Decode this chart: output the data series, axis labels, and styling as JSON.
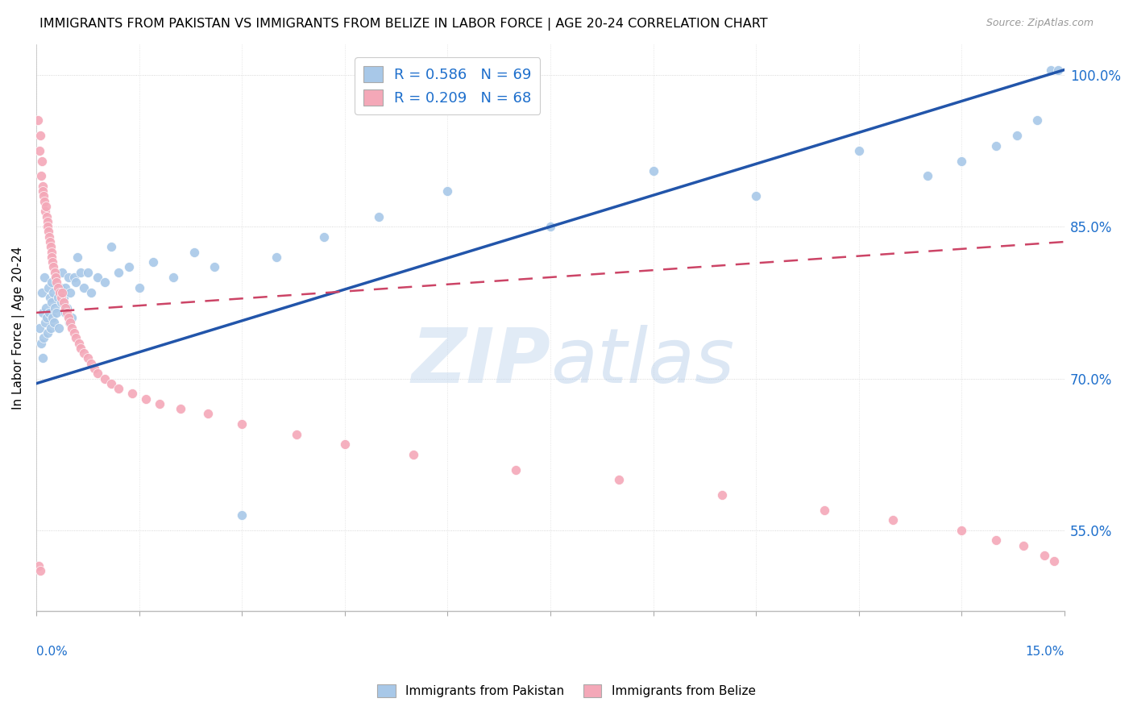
{
  "title": "IMMIGRANTS FROM PAKISTAN VS IMMIGRANTS FROM BELIZE IN LABOR FORCE | AGE 20-24 CORRELATION CHART",
  "source": "Source: ZipAtlas.com",
  "ylabel": "In Labor Force | Age 20-24",
  "right_yticks": [
    55.0,
    70.0,
    85.0,
    100.0
  ],
  "xlim": [
    0.0,
    15.0
  ],
  "ylim": [
    47.0,
    103.0
  ],
  "pakistan_R": 0.586,
  "pakistan_N": 69,
  "belize_R": 0.209,
  "belize_N": 68,
  "pakistan_color": "#A8C8E8",
  "belize_color": "#F4A8B8",
  "pakistan_line_color": "#2255AA",
  "belize_line_color": "#CC4466",
  "pakistan_x": [
    0.05,
    0.07,
    0.08,
    0.09,
    0.1,
    0.11,
    0.12,
    0.13,
    0.14,
    0.15,
    0.16,
    0.18,
    0.19,
    0.2,
    0.21,
    0.22,
    0.23,
    0.24,
    0.25,
    0.26,
    0.27,
    0.28,
    0.3,
    0.32,
    0.33,
    0.35,
    0.37,
    0.38,
    0.4,
    0.42,
    0.43,
    0.45,
    0.47,
    0.48,
    0.5,
    0.52,
    0.55,
    0.58,
    0.6,
    0.65,
    0.7,
    0.75,
    0.8,
    0.9,
    1.0,
    1.1,
    1.2,
    1.35,
    1.5,
    1.7,
    2.0,
    2.3,
    2.6,
    3.0,
    3.5,
    4.2,
    5.0,
    6.0,
    7.5,
    9.0,
    10.5,
    12.0,
    13.0,
    13.5,
    14.0,
    14.3,
    14.6,
    14.8,
    14.9
  ],
  "pakistan_y": [
    75.0,
    73.5,
    78.5,
    72.0,
    76.5,
    74.0,
    80.0,
    75.5,
    77.0,
    76.0,
    74.5,
    79.0,
    76.5,
    78.0,
    75.0,
    77.5,
    79.5,
    76.0,
    78.5,
    75.5,
    77.0,
    80.0,
    76.5,
    78.0,
    75.0,
    79.0,
    77.5,
    80.5,
    78.0,
    76.5,
    79.0,
    77.0,
    80.0,
    75.5,
    78.5,
    76.0,
    80.0,
    79.5,
    82.0,
    80.5,
    79.0,
    80.5,
    78.5,
    80.0,
    79.5,
    83.0,
    80.5,
    81.0,
    79.0,
    81.5,
    80.0,
    82.5,
    81.0,
    56.5,
    82.0,
    84.0,
    86.0,
    88.5,
    85.0,
    90.5,
    88.0,
    92.5,
    90.0,
    91.5,
    93.0,
    94.0,
    95.5,
    100.5,
    100.5
  ],
  "belize_x": [
    0.03,
    0.05,
    0.06,
    0.07,
    0.08,
    0.09,
    0.1,
    0.11,
    0.12,
    0.13,
    0.14,
    0.15,
    0.16,
    0.17,
    0.18,
    0.19,
    0.2,
    0.21,
    0.22,
    0.23,
    0.24,
    0.25,
    0.27,
    0.28,
    0.3,
    0.32,
    0.34,
    0.36,
    0.38,
    0.4,
    0.42,
    0.45,
    0.47,
    0.5,
    0.52,
    0.55,
    0.58,
    0.62,
    0.65,
    0.7,
    0.75,
    0.8,
    0.85,
    0.9,
    1.0,
    1.1,
    1.2,
    1.4,
    1.6,
    1.8,
    2.1,
    2.5,
    3.0,
    3.8,
    4.5,
    5.5,
    7.0,
    8.5,
    10.0,
    11.5,
    12.5,
    13.5,
    14.0,
    14.4,
    14.7,
    14.85,
    0.04,
    0.06
  ],
  "belize_y": [
    95.5,
    92.5,
    94.0,
    90.0,
    91.5,
    89.0,
    88.5,
    88.0,
    87.5,
    86.5,
    87.0,
    86.0,
    85.5,
    85.0,
    84.5,
    84.0,
    83.5,
    83.0,
    82.5,
    82.0,
    81.5,
    81.0,
    80.5,
    80.0,
    79.5,
    79.0,
    78.5,
    78.0,
    78.5,
    77.5,
    77.0,
    76.5,
    76.0,
    75.5,
    75.0,
    74.5,
    74.0,
    73.5,
    73.0,
    72.5,
    72.0,
    71.5,
    71.0,
    70.5,
    70.0,
    69.5,
    69.0,
    68.5,
    68.0,
    67.5,
    67.0,
    66.5,
    65.5,
    64.5,
    63.5,
    62.5,
    61.0,
    60.0,
    58.5,
    57.0,
    56.0,
    55.0,
    54.0,
    53.5,
    52.5,
    52.0,
    51.5,
    51.0
  ],
  "pak_trend_x": [
    0.0,
    15.0
  ],
  "pak_trend_y": [
    69.5,
    100.5
  ],
  "bel_trend_x": [
    0.0,
    15.0
  ],
  "bel_trend_y": [
    76.5,
    83.5
  ]
}
